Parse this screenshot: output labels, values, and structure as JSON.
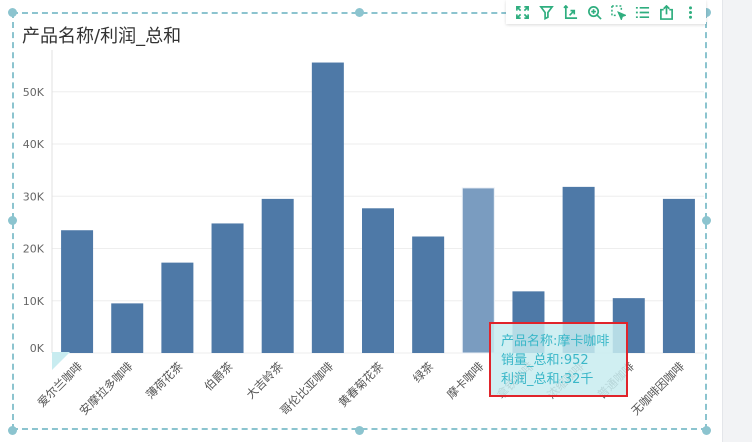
{
  "widget": {
    "title": "产品名称/利润_总和"
  },
  "toolbar": {
    "items": [
      {
        "icon": "fullscreen-icon"
      },
      {
        "icon": "filter-icon"
      },
      {
        "icon": "axis-sort-icon"
      },
      {
        "icon": "zoom-in-icon"
      },
      {
        "icon": "select-area-icon"
      },
      {
        "icon": "list-icon"
      },
      {
        "icon": "export-icon"
      },
      {
        "icon": "more-icon"
      }
    ],
    "color": "#2fae7f"
  },
  "tooltip": {
    "line1": "产品名称:摩卡咖啡",
    "line2": "销量_总和:952",
    "line3": "利润_总和:32千"
  },
  "chart_data": {
    "type": "bar",
    "title": "产品名称/利润_总和",
    "categories": [
      "爱尔兰咖啡",
      "安摩拉多咖啡",
      "薄荷花茶",
      "伯爵茶",
      "大吉岭茶",
      "哥伦比亚咖啡",
      "黄春菊花茶",
      "绿茶",
      "摩卡咖啡",
      "拿铁咖啡",
      "浓缩咖啡",
      "普通咖啡",
      "无咖啡因咖啡"
    ],
    "series": [
      {
        "values": [
          23500,
          9500,
          17300,
          24800,
          29500,
          55600,
          27700,
          22300,
          31600,
          11800,
          31800,
          10500,
          29500
        ]
      }
    ],
    "y_ticks": [
      "0K",
      "10K",
      "20K",
      "30K",
      "40K",
      "50K"
    ],
    "ylim": [
      0,
      58000
    ],
    "highlighted_category": "摩卡咖啡",
    "bar_color": "#4e79a7",
    "highlight_color": "#7a9cc0",
    "grid": true
  }
}
